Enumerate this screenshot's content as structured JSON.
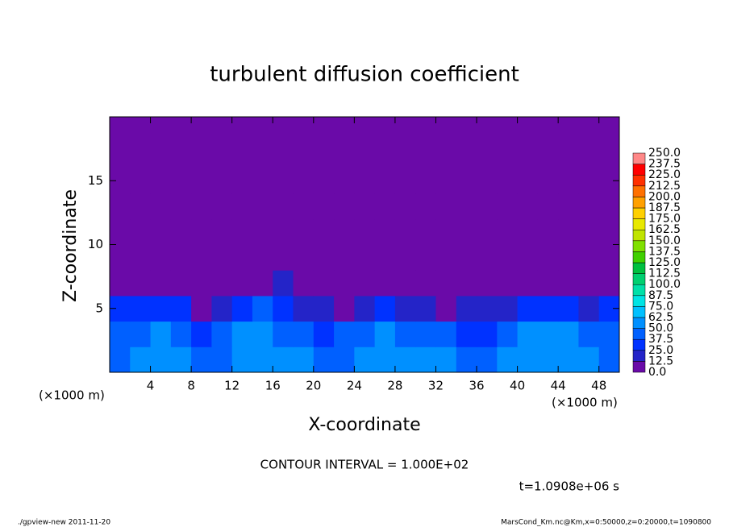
{
  "chart_data": {
    "type": "heatmap",
    "title": "turbulent diffusion coefficient",
    "x_label": "X-coordinate",
    "y_label": "Z-coordinate",
    "x_unit": "(×1000 m)",
    "x_unit_right": "(×1000 m)",
    "y_unit": "(×1000 m)",
    "contour_interval": "CONTOUR INTERVAL = 1.000E+02",
    "time": "t=1.0908e+06 s",
    "footer_left": "./gpview-new   2011-11-20",
    "footer_right": "MarsCond_Km.nc@Km,x=0:50000,z=0:20000,t=1090800",
    "xlim": [
      0,
      50
    ],
    "ylim": [
      0,
      20
    ],
    "xticks": [
      4,
      8,
      12,
      16,
      20,
      24,
      28,
      32,
      36,
      40,
      44,
      48
    ],
    "yticks": [
      5,
      10,
      15
    ],
    "x": [
      1,
      3,
      5,
      7,
      9,
      11,
      13,
      15,
      17,
      19,
      21,
      23,
      25,
      27,
      29,
      31,
      33,
      35,
      37,
      39,
      41,
      43,
      45,
      47,
      49
    ],
    "y": [
      1,
      3,
      5,
      7,
      9,
      11,
      13,
      15,
      17,
      19
    ],
    "z": [
      [
        45,
        50,
        55,
        60,
        45,
        40,
        55,
        60,
        50,
        55,
        40,
        45,
        50,
        55,
        60,
        55,
        50,
        45,
        40,
        50,
        55,
        60,
        55,
        50,
        45
      ],
      [
        40,
        45,
        50,
        45,
        35,
        40,
        50,
        55,
        45,
        40,
        35,
        40,
        45,
        50,
        45,
        40,
        45,
        35,
        30,
        45,
        50,
        55,
        50,
        45,
        40
      ],
      [
        25,
        30,
        35,
        30,
        10,
        20,
        35,
        40,
        25,
        20,
        15,
        10,
        20,
        25,
        20,
        15,
        10,
        15,
        20,
        15,
        25,
        30,
        25,
        20,
        25
      ],
      [
        5,
        10,
        0,
        0,
        0,
        0,
        5,
        10,
        15,
        5,
        0,
        5,
        0,
        0,
        5,
        0,
        0,
        0,
        0,
        0,
        0,
        0,
        0,
        0,
        5
      ],
      [
        0,
        0,
        0,
        0,
        0,
        0,
        0,
        0,
        0,
        0,
        0,
        0,
        0,
        0,
        0,
        0,
        0,
        0,
        0,
        0,
        0,
        0,
        0,
        0,
        0
      ],
      [
        0,
        0,
        0,
        0,
        0,
        0,
        0,
        0,
        0,
        0,
        0,
        0,
        0,
        0,
        0,
        0,
        0,
        0,
        0,
        0,
        0,
        0,
        0,
        0,
        0
      ],
      [
        0,
        0,
        0,
        0,
        0,
        0,
        0,
        0,
        0,
        0,
        0,
        0,
        0,
        0,
        0,
        0,
        0,
        0,
        0,
        0,
        0,
        0,
        0,
        0,
        0
      ],
      [
        0,
        0,
        0,
        0,
        0,
        0,
        0,
        0,
        0,
        0,
        0,
        0,
        0,
        0,
        0,
        0,
        0,
        0,
        0,
        0,
        0,
        0,
        0,
        0,
        0
      ],
      [
        0,
        0,
        0,
        0,
        0,
        0,
        0,
        0,
        0,
        0,
        0,
        0,
        0,
        0,
        0,
        0,
        0,
        0,
        0,
        0,
        0,
        0,
        0,
        0,
        0
      ],
      [
        0,
        0,
        0,
        0,
        0,
        0,
        0,
        0,
        0,
        0,
        0,
        0,
        0,
        0,
        0,
        0,
        0,
        0,
        0,
        0,
        0,
        0,
        0,
        0,
        0
      ]
    ],
    "levels": [
      {
        "value": 0,
        "label": "0.0"
      },
      12.5,
      {
        "value": 25,
        "label": "25.0"
      },
      37.5,
      {
        "value": 50,
        "label": "50.0"
      },
      62.5,
      {
        "value": 75,
        "label": "75.0"
      },
      87.5,
      {
        "value": 100,
        "label": "100.0"
      },
      112.5,
      {
        "value": 125,
        "label": "125.0"
      },
      137.5,
      {
        "value": 150,
        "label": "150.0"
      },
      162.5,
      {
        "value": 175,
        "label": "175.0"
      },
      187.5,
      {
        "value": 200,
        "label": "200.0"
      },
      212.5,
      {
        "value": 225,
        "label": "225.0"
      },
      237.5,
      {
        "value": 250,
        "label": "250.0"
      }
    ],
    "colors": [
      "#6a0aa8",
      "#2424c8",
      "#0032ff",
      "#0060ff",
      "#0090ff",
      "#00c0ff",
      "#00e4e4",
      "#00e0a8",
      "#00d070",
      "#00c040",
      "#40d000",
      "#80e000",
      "#c0e400",
      "#e8e800",
      "#ffd000",
      "#ffa000",
      "#ff7000",
      "#ff3000",
      "#ff0000",
      "#ff8888"
    ]
  }
}
